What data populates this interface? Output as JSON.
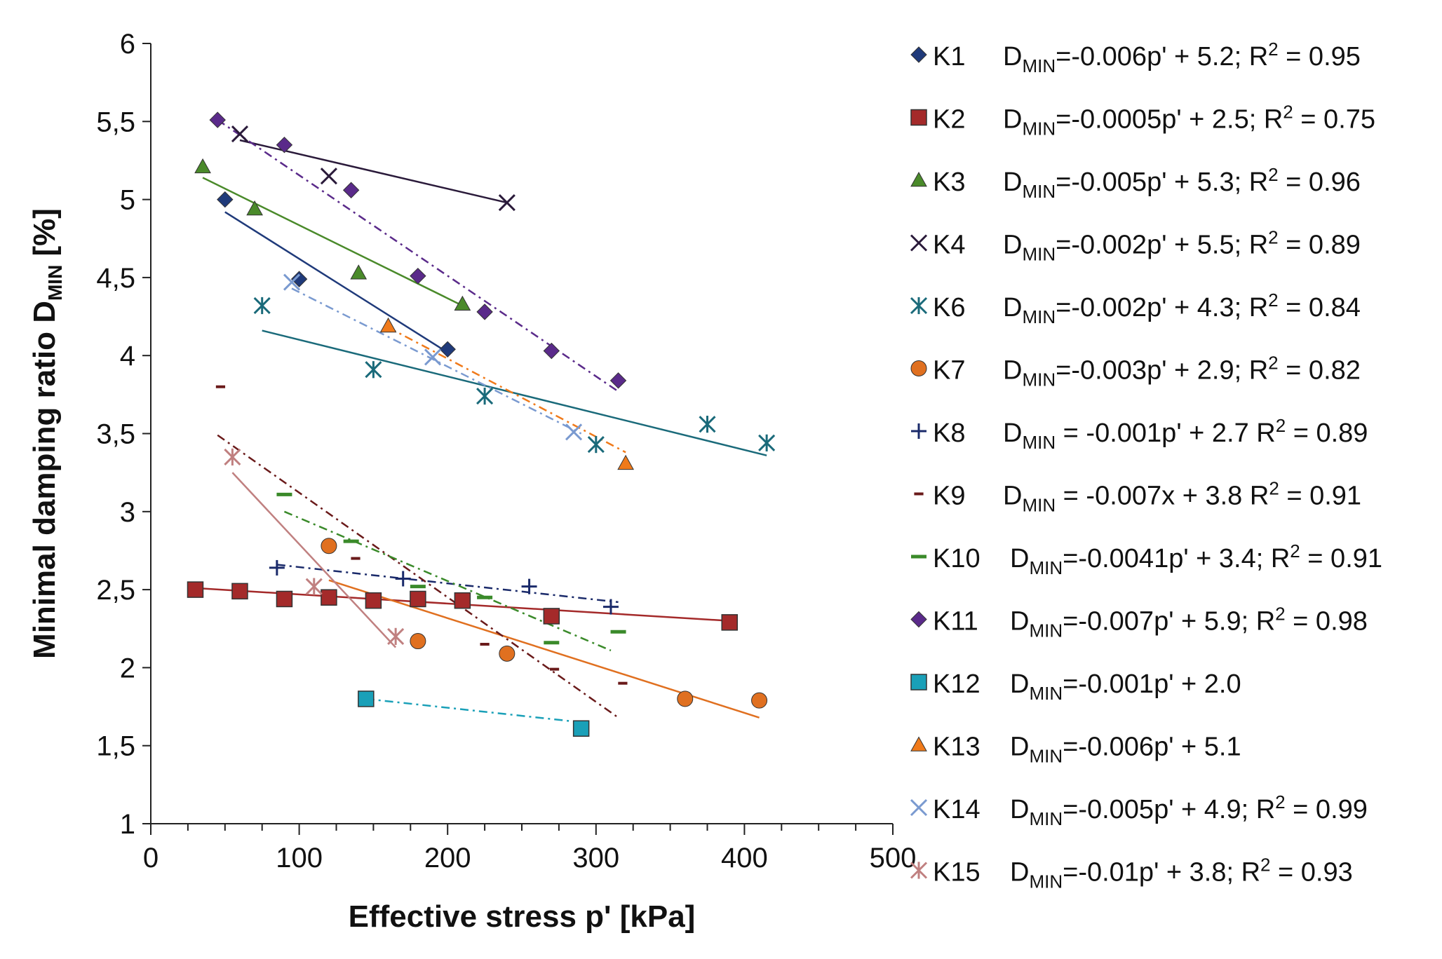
{
  "chart_data": {
    "type": "scatter",
    "xlabel": "Effective stress p' [kPa]",
    "ylabel_main": "Minimal damping ratio D",
    "ylabel_sub": "MIN",
    "ylabel_tail": " [%]",
    "xlim": [
      0,
      500
    ],
    "ylim": [
      1,
      6
    ],
    "x_ticks": [
      0,
      100,
      200,
      300,
      400,
      500
    ],
    "y_ticks": [
      1,
      1.5,
      2,
      2.5,
      3,
      3.5,
      4,
      4.5,
      5,
      5.5,
      6
    ],
    "x_tick_labels": [
      "0",
      "100",
      "200",
      "300",
      "400",
      "500"
    ],
    "y_tick_labels": [
      "1",
      "1,5",
      "2",
      "2,5",
      "3",
      "3,5",
      "4",
      "4,5",
      "5",
      "5,5",
      "6"
    ],
    "grid": false,
    "legend_position": "right",
    "series": [
      {
        "name": "K1",
        "marker": "diamond",
        "color": "#1f3a7a",
        "line_style": "solid",
        "eq_pre": "D",
        "eq_sub": "MIN",
        "eq_post": "=-0.006p' + 5.2; R",
        "eq_sup": "2",
        "eq_tail": " = 0.95",
        "points": [
          [
            50,
            5.0
          ],
          [
            100,
            4.49
          ],
          [
            200,
            4.04
          ]
        ],
        "trend": [
          [
            50,
            4.92
          ],
          [
            200,
            4.02
          ]
        ]
      },
      {
        "name": "K2",
        "marker": "square",
        "color": "#a42a2a",
        "line_style": "solid",
        "eq_pre": "D",
        "eq_sub": "MIN",
        "eq_post": "=-0.0005p' + 2.5; R",
        "eq_sup": "2",
        "eq_tail": " = 0.75",
        "points": [
          [
            30,
            2.5
          ],
          [
            60,
            2.49
          ],
          [
            90,
            2.44
          ],
          [
            120,
            2.45
          ],
          [
            150,
            2.43
          ],
          [
            180,
            2.44
          ],
          [
            210,
            2.43
          ],
          [
            270,
            2.33
          ],
          [
            390,
            2.29
          ]
        ],
        "trend": [
          [
            30,
            2.51
          ],
          [
            390,
            2.3
          ]
        ]
      },
      {
        "name": "K3",
        "marker": "triangle",
        "color": "#4a8a2a",
        "line_style": "solid",
        "eq_pre": "D",
        "eq_sub": "MIN",
        "eq_post": "=-0.005p' + 5.3; R",
        "eq_sup": "2",
        "eq_tail": " = 0.96",
        "points": [
          [
            35,
            5.21
          ],
          [
            70,
            4.94
          ],
          [
            140,
            4.53
          ],
          [
            210,
            4.33
          ]
        ],
        "trend": [
          [
            35,
            5.14
          ],
          [
            210,
            4.32
          ]
        ]
      },
      {
        "name": "K4",
        "marker": "x",
        "color": "#2a1a3a",
        "line_style": "solid",
        "eq_pre": "D",
        "eq_sub": "MIN",
        "eq_post": "=-0.002p' + 5.5; R",
        "eq_sup": "2",
        "eq_tail": " = 0.89",
        "points": [
          [
            60,
            5.42
          ],
          [
            120,
            5.15
          ],
          [
            240,
            4.98
          ]
        ],
        "trend": [
          [
            60,
            5.38
          ],
          [
            240,
            4.98
          ]
        ]
      },
      {
        "name": "K6",
        "marker": "asterisk",
        "color": "#1a6a7a",
        "line_style": "solid",
        "eq_pre": "D",
        "eq_sub": "MIN",
        "eq_post": "=-0.002p' + 4.3; R",
        "eq_sup": "2",
        "eq_tail": " = 0.84",
        "points": [
          [
            75,
            4.32
          ],
          [
            150,
            3.91
          ],
          [
            225,
            3.74
          ],
          [
            300,
            3.43
          ],
          [
            375,
            3.56
          ],
          [
            415,
            3.44
          ]
        ],
        "trend": [
          [
            75,
            4.16
          ],
          [
            415,
            3.36
          ]
        ]
      },
      {
        "name": "K7",
        "marker": "circle",
        "color": "#e07020",
        "line_style": "solid",
        "eq_pre": "D",
        "eq_sub": "MIN",
        "eq_post": "=-0.003p' + 2.9; R",
        "eq_sup": "2",
        "eq_tail": " = 0.82",
        "points": [
          [
            120,
            2.78
          ],
          [
            180,
            2.17
          ],
          [
            240,
            2.09
          ],
          [
            360,
            1.8
          ],
          [
            410,
            1.79
          ]
        ],
        "trend": [
          [
            120,
            2.56
          ],
          [
            410,
            1.68
          ]
        ]
      },
      {
        "name": "K8",
        "marker": "plus",
        "color": "#1a2a6a",
        "line_style": "dashdot",
        "eq_pre": "D",
        "eq_sub": "MIN",
        "eq_post": " = -0.001p' + 2.7 R",
        "eq_sup": "2",
        "eq_tail": " = 0.89",
        "points": [
          [
            85,
            2.64
          ],
          [
            170,
            2.57
          ],
          [
            255,
            2.52
          ],
          [
            310,
            2.39
          ]
        ],
        "trend": [
          [
            85,
            2.66
          ],
          [
            315,
            2.42
          ]
        ]
      },
      {
        "name": "K9",
        "marker": "dash",
        "color": "#6a1a1a",
        "line_style": "dashdot",
        "eq_pre": "D",
        "eq_sub": "MIN",
        "eq_post": " = -0.007x + 3.8 R",
        "eq_sup": "2",
        "eq_tail": " = 0.91",
        "points": [
          [
            47,
            3.8
          ],
          [
            138,
            2.7
          ],
          [
            225,
            2.15
          ],
          [
            272,
            1.99
          ],
          [
            318,
            1.9
          ]
        ],
        "trend": [
          [
            45,
            3.49
          ],
          [
            315,
            1.68
          ]
        ]
      },
      {
        "name": "K10",
        "marker": "bar",
        "color": "#3a8a2a",
        "line_style": "dashdot",
        "eq_pre": "D",
        "eq_sub": "MIN",
        "eq_post": "=-0.0041p' + 3.4; R",
        "eq_sup": "2",
        "eq_tail": " = 0.91",
        "points": [
          [
            90,
            3.11
          ],
          [
            135,
            2.81
          ],
          [
            180,
            2.52
          ],
          [
            225,
            2.45
          ],
          [
            270,
            2.16
          ],
          [
            315,
            2.23
          ]
        ],
        "trend": [
          [
            90,
            3.0
          ],
          [
            310,
            2.11
          ]
        ]
      },
      {
        "name": "K11",
        "marker": "diamond",
        "color": "#5a2a8a",
        "line_style": "dashdot",
        "eq_pre": "D",
        "eq_sub": "MIN",
        "eq_post": "=-0.007p' + 5.9; R",
        "eq_sup": "2",
        "eq_tail": " = 0.98",
        "points": [
          [
            45,
            5.51
          ],
          [
            90,
            5.35
          ],
          [
            135,
            5.06
          ],
          [
            180,
            4.51
          ],
          [
            225,
            4.28
          ],
          [
            270,
            4.03
          ],
          [
            315,
            3.84
          ]
        ],
        "trend": [
          [
            45,
            5.51
          ],
          [
            315,
            3.77
          ]
        ]
      },
      {
        "name": "K12",
        "marker": "square",
        "color": "#1aa0b8",
        "line_style": "dashdot",
        "eq_pre": "D",
        "eq_sub": "MIN",
        "eq_post": "=-0.001p' + 2.0",
        "eq_sup": "",
        "eq_tail": "",
        "points": [
          [
            145,
            1.8
          ],
          [
            290,
            1.61
          ]
        ],
        "trend": [
          [
            145,
            1.8
          ],
          [
            290,
            1.65
          ]
        ]
      },
      {
        "name": "K13",
        "marker": "triangle",
        "color": "#f07a1a",
        "line_style": "dashdot",
        "eq_pre": "D",
        "eq_sub": "MIN",
        "eq_post": "=-0.006p' + 5.1",
        "eq_sup": "",
        "eq_tail": "",
        "points": [
          [
            160,
            4.19
          ],
          [
            320,
            3.31
          ]
        ],
        "trend": [
          [
            160,
            4.18
          ],
          [
            320,
            3.38
          ]
        ]
      },
      {
        "name": "K14",
        "marker": "x",
        "color": "#7a9ad0",
        "line_style": "dashdot",
        "eq_pre": "D",
        "eq_sub": "MIN",
        "eq_post": "=-0.005p' + 4.9; R",
        "eq_sup": "2",
        "eq_tail": " = 0.99",
        "points": [
          [
            95,
            4.47
          ],
          [
            190,
            3.99
          ],
          [
            285,
            3.51
          ]
        ],
        "trend": [
          [
            95,
            4.43
          ],
          [
            290,
            3.5
          ]
        ]
      },
      {
        "name": "K15",
        "marker": "asterisk",
        "color": "#c08080",
        "line_style": "solid",
        "eq_pre": "D",
        "eq_sub": "MIN",
        "eq_post": "=-0.01p' + 3.8; R",
        "eq_sup": "2",
        "eq_tail": " = 0.93",
        "points": [
          [
            55,
            3.35
          ],
          [
            110,
            2.52
          ],
          [
            165,
            2.2
          ]
        ],
        "trend": [
          [
            55,
            3.25
          ],
          [
            165,
            2.13
          ]
        ]
      }
    ]
  }
}
